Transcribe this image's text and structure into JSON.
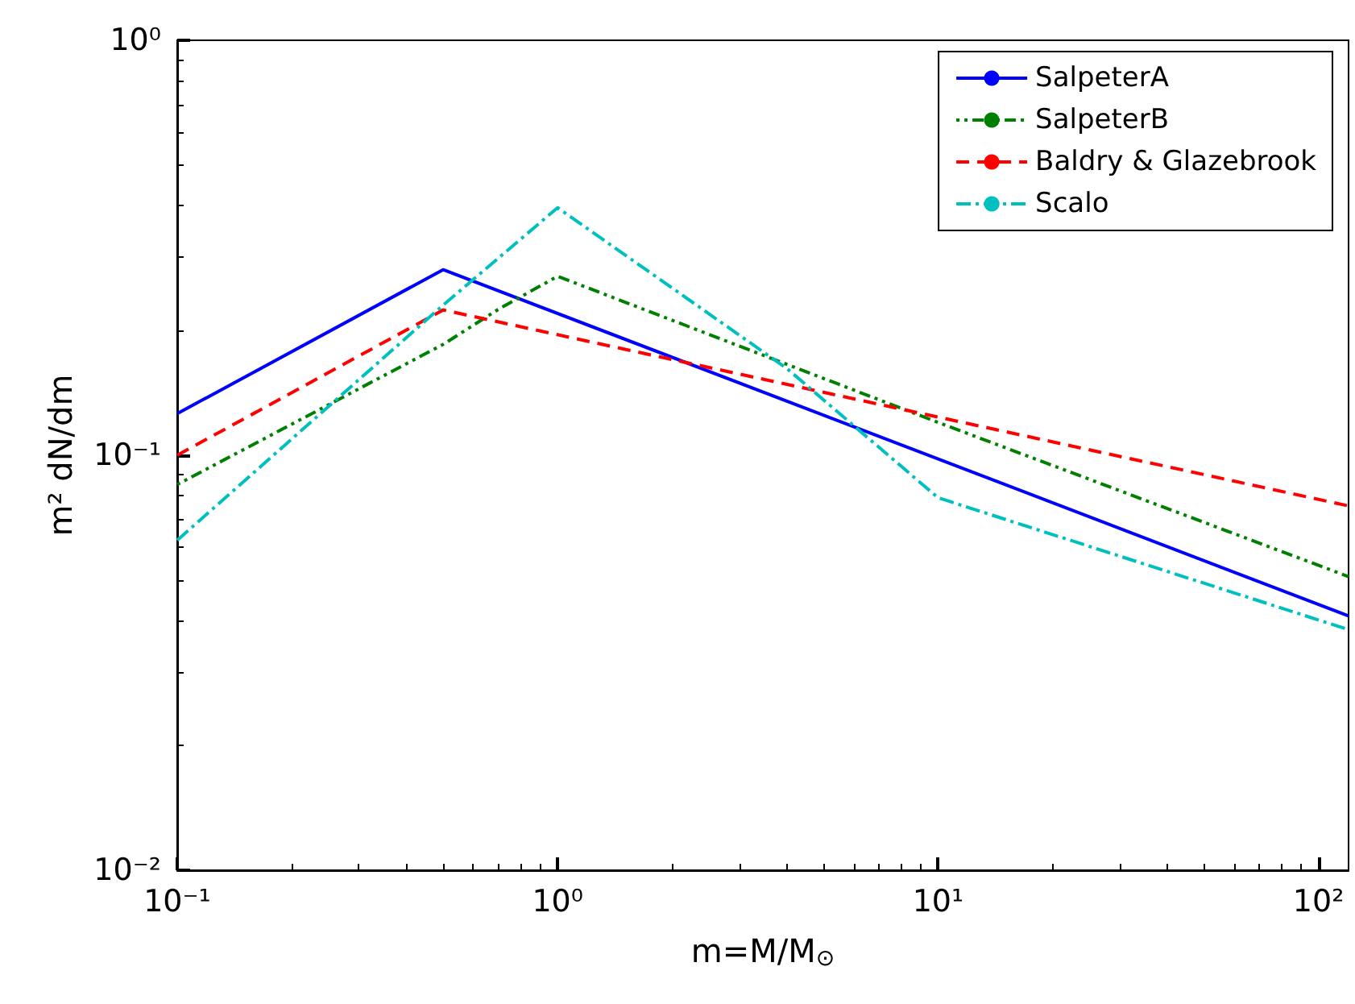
{
  "chart_data": {
    "type": "line",
    "xlabel": "m=M/M$_{⊙}$",
    "ylabel": "m² dN/dm",
    "log": "xy",
    "grid": false,
    "legend": "top right",
    "marker": "none",
    "xlim": [
      0.1,
      120
    ],
    "ylim": [
      0.01,
      1
    ],
    "xticks": [
      {
        "value": 0.1,
        "label": "10⁻¹"
      },
      {
        "value": 1,
        "label": "10⁰"
      },
      {
        "value": 10,
        "label": "10¹"
      },
      {
        "value": 100,
        "label": "10²"
      }
    ],
    "yticks": [
      {
        "value": 0.01,
        "label": "10⁻²"
      },
      {
        "value": 0.1,
        "label": "10⁻¹"
      },
      {
        "value": 1,
        "label": "10⁰"
      }
    ],
    "series": [
      {
        "name": "SalpeterA",
        "color": "#0000ff",
        "line_style": "solid",
        "x": [
          0.1,
          0.5,
          120
        ],
        "values": [
          0.126,
          0.28,
          0.041
        ]
      },
      {
        "name": "SalpeterB",
        "color": "#008000",
        "line_style": "dotted",
        "x": [
          0.1,
          0.5,
          0.7,
          1,
          10,
          120
        ],
        "values": [
          0.085,
          0.185,
          0.225,
          0.27,
          0.12,
          0.051
        ]
      },
      {
        "name": "Baldry & Glazebrook",
        "color": "#ff0000",
        "line_style": "dashed",
        "x": [
          0.1,
          0.5,
          120
        ],
        "values": [
          0.1,
          0.224,
          0.0755
        ]
      },
      {
        "name": "Scalo",
        "color": "#00bfbf",
        "line_style": "dashdot",
        "x": [
          0.1,
          0.5,
          1,
          4,
          10,
          120
        ],
        "values": [
          0.0624,
          0.23,
          0.395,
          0.162,
          0.079,
          0.038
        ]
      }
    ]
  }
}
